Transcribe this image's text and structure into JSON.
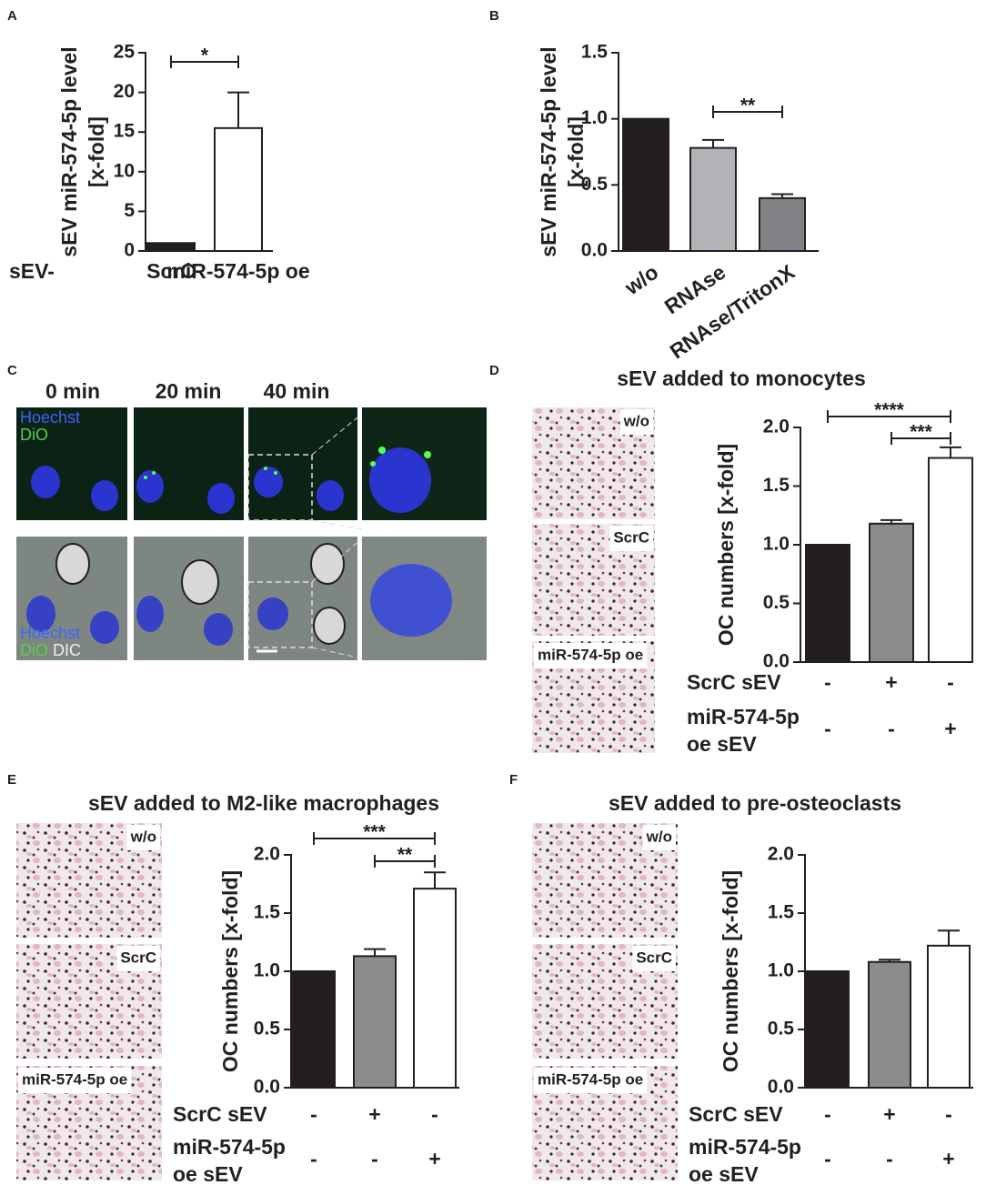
{
  "chart_data": [
    {
      "type": "bar",
      "panel": "A",
      "ylabel": [
        "sEV miR-574-5p level",
        "[x-fold]"
      ],
      "category_prefix": "sEV-",
      "categories": [
        "ScrC",
        "miR-574-5p oe"
      ],
      "values": [
        1,
        15.5
      ],
      "errors": [
        null,
        4.5
      ],
      "colors": [
        "#231f20",
        "#ffffff"
      ],
      "ylim": [
        0,
        25
      ],
      "yticks": [
        0,
        5,
        10,
        15,
        20,
        25
      ],
      "significance": [
        {
          "label": "*",
          "from": 0,
          "to": 1
        }
      ]
    },
    {
      "type": "bar",
      "panel": "B",
      "ylabel": [
        "sEV miR-574-5p level",
        "[x-fold]"
      ],
      "categories": [
        "w/o",
        "RNAse",
        "RNAse/TritonX"
      ],
      "values": [
        1.0,
        0.78,
        0.4
      ],
      "errors": [
        null,
        0.06,
        0.03
      ],
      "colors": [
        "#231f20",
        "#b1b3b6",
        "#808285"
      ],
      "ylim": [
        0,
        1.5
      ],
      "yticks": [
        {
          "value": 0,
          "label": "0.0"
        },
        0.5,
        {
          "value": 1,
          "label": "1.0"
        },
        1.5
      ],
      "significance": [
        {
          "label": "**",
          "from": 1,
          "to": 2
        }
      ]
    },
    {
      "type": "bar",
      "panel": "D",
      "title": "sEV added to monocytes",
      "image_labels": [
        "w/o",
        "ScrC",
        "miR-574-5p oe"
      ],
      "ylabel": [
        "OC numbers [x-fold]"
      ],
      "values": [
        1.0,
        1.18,
        1.74
      ],
      "errors": [
        null,
        0.03,
        0.09
      ],
      "colors": [
        "#231f20",
        "#8c8c8c",
        "#ffffff"
      ],
      "ylim": [
        0,
        2
      ],
      "yticks": [
        {
          "value": 0,
          "label": "0.0"
        },
        0.5,
        {
          "value": 1,
          "label": "1.0"
        },
        1.5,
        {
          "value": 2,
          "label": "2.0"
        }
      ],
      "conditions": [
        {
          "name": [
            "ScrC sEV"
          ],
          "signs": [
            "-",
            "+",
            "-"
          ]
        },
        {
          "name": [
            "miR-574-5p",
            "oe sEV"
          ],
          "signs": [
            "-",
            "-",
            "+"
          ]
        }
      ],
      "significance": [
        {
          "label": "****",
          "from": 0,
          "to": 2
        },
        {
          "label": "***",
          "from": 1,
          "to": 2
        }
      ]
    },
    {
      "type": "bar",
      "panel": "E",
      "title": "sEV added to M2-like macrophages",
      "image_labels": [
        "w/o",
        "ScrC",
        "miR-574-5p oe"
      ],
      "ylabel": [
        "OC numbers [x-fold]"
      ],
      "values": [
        1.0,
        1.13,
        1.71
      ],
      "errors": [
        null,
        0.06,
        0.14
      ],
      "colors": [
        "#231f20",
        "#8c8c8c",
        "#ffffff"
      ],
      "ylim": [
        0,
        2
      ],
      "yticks": [
        {
          "value": 0,
          "label": "0.0"
        },
        0.5,
        {
          "value": 1,
          "label": "1.0"
        },
        1.5,
        {
          "value": 2,
          "label": "2.0"
        }
      ],
      "conditions": [
        {
          "name": [
            "ScrC sEV"
          ],
          "signs": [
            "-",
            "+",
            "-"
          ]
        },
        {
          "name": [
            "miR-574-5p",
            "oe sEV"
          ],
          "signs": [
            "-",
            "-",
            "+"
          ]
        }
      ],
      "significance": [
        {
          "label": "***",
          "from": 0,
          "to": 2
        },
        {
          "label": "**",
          "from": 1,
          "to": 2
        }
      ]
    },
    {
      "type": "bar",
      "panel": "F",
      "title": "sEV added to pre-osteoclasts",
      "image_labels": [
        "w/o",
        "ScrC",
        "miR-574-5p oe"
      ],
      "ylabel": [
        "OC numbers [x-fold]"
      ],
      "values": [
        1.0,
        1.08,
        1.22
      ],
      "errors": [
        null,
        0.02,
        0.13
      ],
      "colors": [
        "#231f20",
        "#8c8c8c",
        "#ffffff"
      ],
      "ylim": [
        0,
        2
      ],
      "yticks": [
        {
          "value": 0,
          "label": "0.0"
        },
        0.5,
        {
          "value": 1,
          "label": "1.0"
        },
        1.5,
        {
          "value": 2,
          "label": "2.0"
        }
      ],
      "conditions": [
        {
          "name": [
            "ScrC sEV"
          ],
          "signs": [
            "-",
            "+",
            "-"
          ]
        },
        {
          "name": [
            "miR-574-5p",
            "oe sEV"
          ],
          "signs": [
            "-",
            "-",
            "+"
          ]
        }
      ],
      "significance": []
    }
  ],
  "micrographs": {
    "panel": "C",
    "timepoints": [
      "0 min",
      "20 min",
      "40 min"
    ],
    "stains_top": [
      "Hoechst",
      "DiO"
    ],
    "stains_bottom": [
      "Hoechst",
      "DiO",
      "DIC"
    ]
  }
}
